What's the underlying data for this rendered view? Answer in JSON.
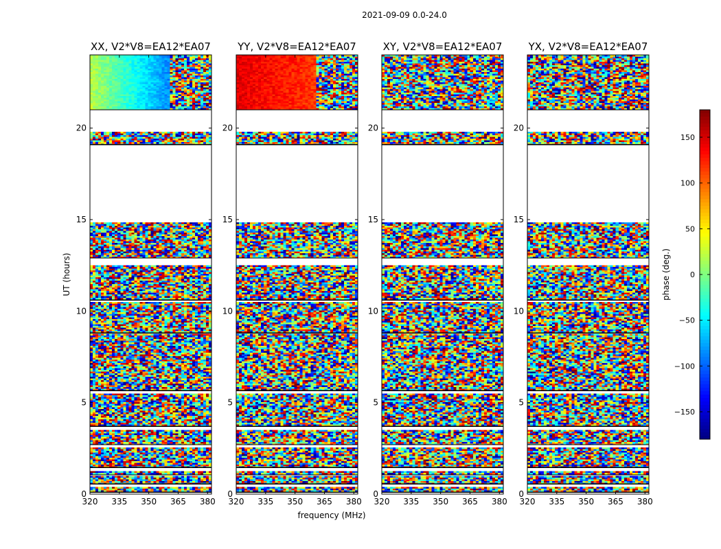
{
  "figure": {
    "suptitle": "2021-09-09 0.0-24.0"
  },
  "chart_data": {
    "type": "heatmap",
    "panels": [
      {
        "title": "XX, V2*V8=EA12*EA07",
        "style": "xx"
      },
      {
        "title": "YY, V2*V8=EA12*EA07",
        "style": "yy"
      },
      {
        "title": "XY, V2*V8=EA12*EA07",
        "style": "noise"
      },
      {
        "title": "YX, V2*V8=EA12*EA07",
        "style": "noise"
      }
    ],
    "xlabel": "frequency (MHz)",
    "ylabel": "UT (hours)",
    "xlim": [
      320,
      382
    ],
    "ylim": [
      0,
      24
    ],
    "xticks": [
      320,
      335,
      350,
      365,
      380
    ],
    "yticks": [
      0,
      5,
      10,
      15,
      20
    ],
    "colorbar": {
      "label": "phase (deg.)",
      "range": [
        -180,
        180
      ],
      "ticks": [
        -150,
        -100,
        -50,
        0,
        50,
        100,
        150
      ],
      "tick_labels": [
        "−150",
        "−100",
        "−50",
        "0",
        "50",
        "100",
        "150"
      ]
    },
    "data_segments_ut": [
      [
        0.1,
        0.4
      ],
      [
        0.55,
        1.0
      ],
      [
        1.05,
        1.25
      ],
      [
        1.45,
        2.55
      ],
      [
        2.7,
        3.5
      ],
      [
        3.7,
        5.5
      ],
      [
        5.65,
        8.75
      ],
      [
        8.8,
        10.5
      ],
      [
        10.6,
        12.5
      ],
      [
        12.9,
        14.85
      ],
      [
        19.1,
        19.8
      ],
      [
        21.0,
        24.0
      ]
    ]
  }
}
